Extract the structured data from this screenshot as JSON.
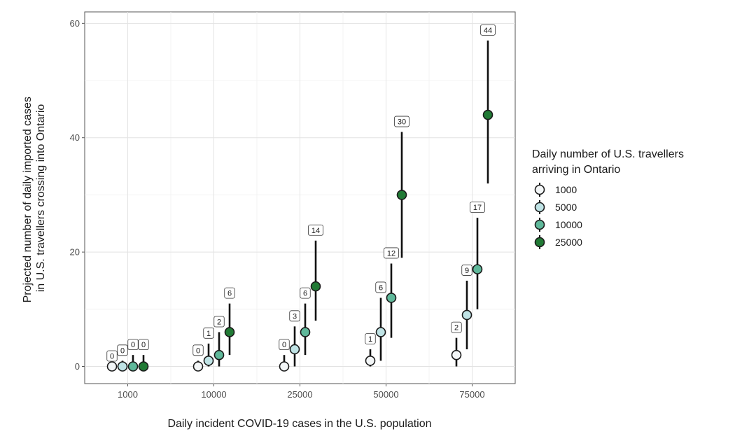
{
  "chart_data": {
    "type": "scatter",
    "subtype": "dot-with-error-bars",
    "xlabel": "Daily incident COVID-19 cases in the U.S. population",
    "ylabel_lines": [
      "Projected number of daily imported cases",
      "in U.S. travellers crossing into Ontario"
    ],
    "categories": [
      "1000",
      "10000",
      "25000",
      "50000",
      "75000"
    ],
    "ylim": [
      -3,
      62
    ],
    "yticks": [
      0,
      20,
      40,
      60
    ],
    "grid": true,
    "legend": {
      "title_lines": [
        "Daily number of U.S. travellers",
        "arriving in Ontario"
      ],
      "placement": "right"
    },
    "series": [
      {
        "name": "1000",
        "color": "#f3f6f7",
        "values": [
          0,
          0,
          0,
          1,
          2
        ],
        "lower": [
          0,
          0,
          0,
          0,
          0
        ],
        "upper": [
          0,
          1,
          2,
          3,
          5
        ],
        "labels": [
          "0",
          "0",
          "0",
          "1",
          "2"
        ]
      },
      {
        "name": "5000",
        "color": "#bfe3e5",
        "values": [
          0,
          1,
          3,
          6,
          9
        ],
        "lower": [
          0,
          0,
          0,
          1,
          3
        ],
        "upper": [
          1,
          4,
          7,
          12,
          15
        ],
        "labels": [
          "0",
          "1",
          "3",
          "6",
          "9"
        ]
      },
      {
        "name": "10000",
        "color": "#5fb89a",
        "values": [
          0,
          2,
          6,
          12,
          17
        ],
        "lower": [
          0,
          0,
          2,
          5,
          10
        ],
        "upper": [
          2,
          6,
          11,
          18,
          26
        ],
        "labels": [
          "0",
          "2",
          "6",
          "12",
          "17"
        ]
      },
      {
        "name": "25000",
        "color": "#217a35",
        "values": [
          0,
          6,
          14,
          30,
          44
        ],
        "lower": [
          0,
          2,
          8,
          19,
          32
        ],
        "upper": [
          2,
          11,
          22,
          41,
          57
        ],
        "labels": [
          "0",
          "6",
          "14",
          "30",
          "44"
        ]
      }
    ]
  }
}
